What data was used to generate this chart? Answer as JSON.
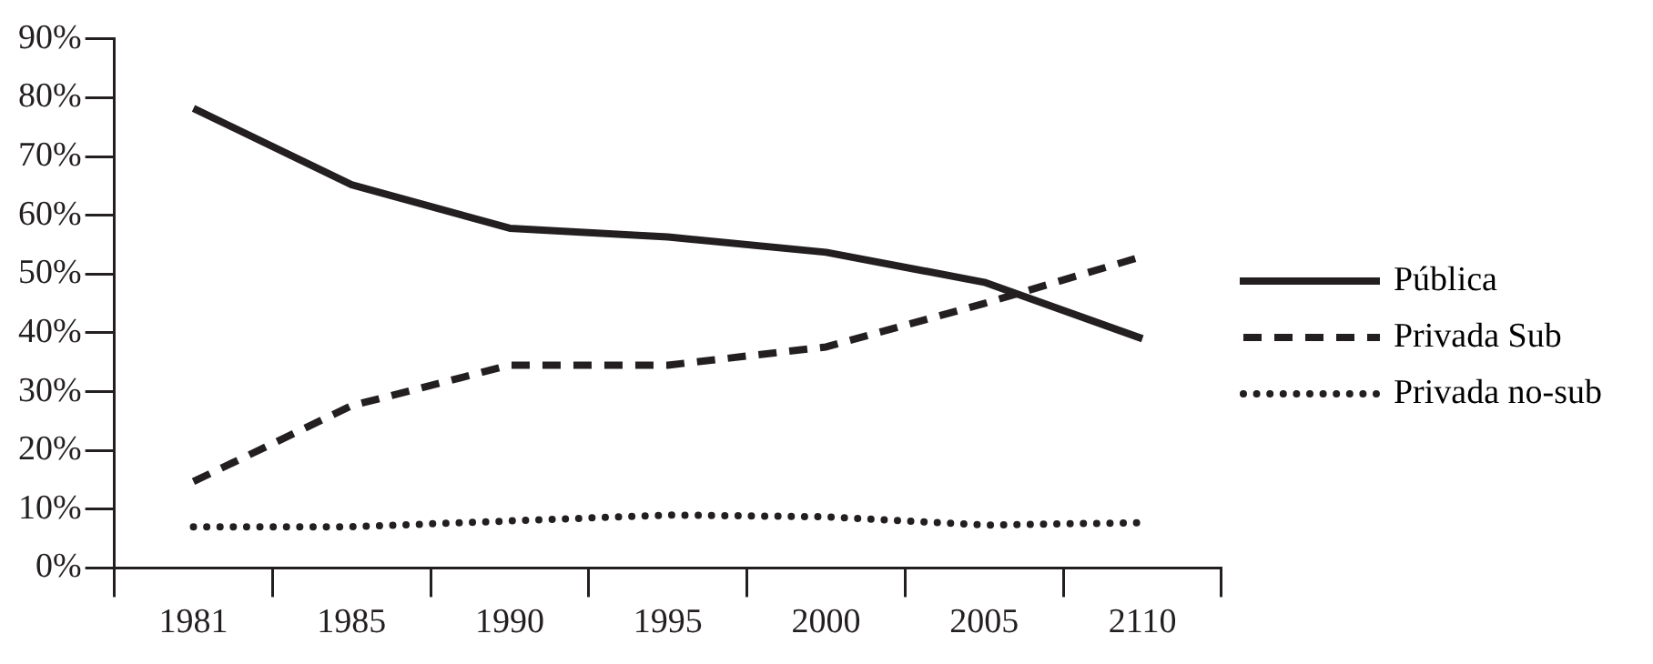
{
  "chart_data": {
    "type": "line",
    "categories": [
      "1981",
      "1985",
      "1990",
      "1995",
      "2000",
      "2005",
      "2110"
    ],
    "series": [
      {
        "name": "Pública",
        "color": "#231f20",
        "line_style": "solid",
        "values": [
          78.2,
          65.2,
          57.8,
          56.3,
          53.7,
          48.6,
          39
        ]
      },
      {
        "name": "Privada Sub",
        "color": "#231f20",
        "line_style": "dashed",
        "values": [
          14.7,
          27.6,
          34.5,
          34.5,
          37.6,
          45,
          53
        ]
      },
      {
        "name": "Privada no-sub",
        "color": "#231f20",
        "line_style": "dotted",
        "values": [
          7,
          7,
          8,
          9,
          8.7,
          7.3,
          7.7
        ]
      }
    ],
    "ylim": [
      0,
      90
    ],
    "yticks": [
      {
        "value": 0,
        "label": "0%"
      },
      {
        "value": 10,
        "label": "10%"
      },
      {
        "value": 20,
        "label": "20%"
      },
      {
        "value": 30,
        "label": "30%"
      },
      {
        "value": 40,
        "label": "40%"
      },
      {
        "value": 50,
        "label": "50%"
      },
      {
        "value": 60,
        "label": "60%"
      },
      {
        "value": 70,
        "label": "70%"
      },
      {
        "value": 80,
        "label": "80%"
      },
      {
        "value": 90,
        "label": "90%"
      }
    ],
    "grid": false,
    "legend": "right",
    "marker": "none"
  }
}
